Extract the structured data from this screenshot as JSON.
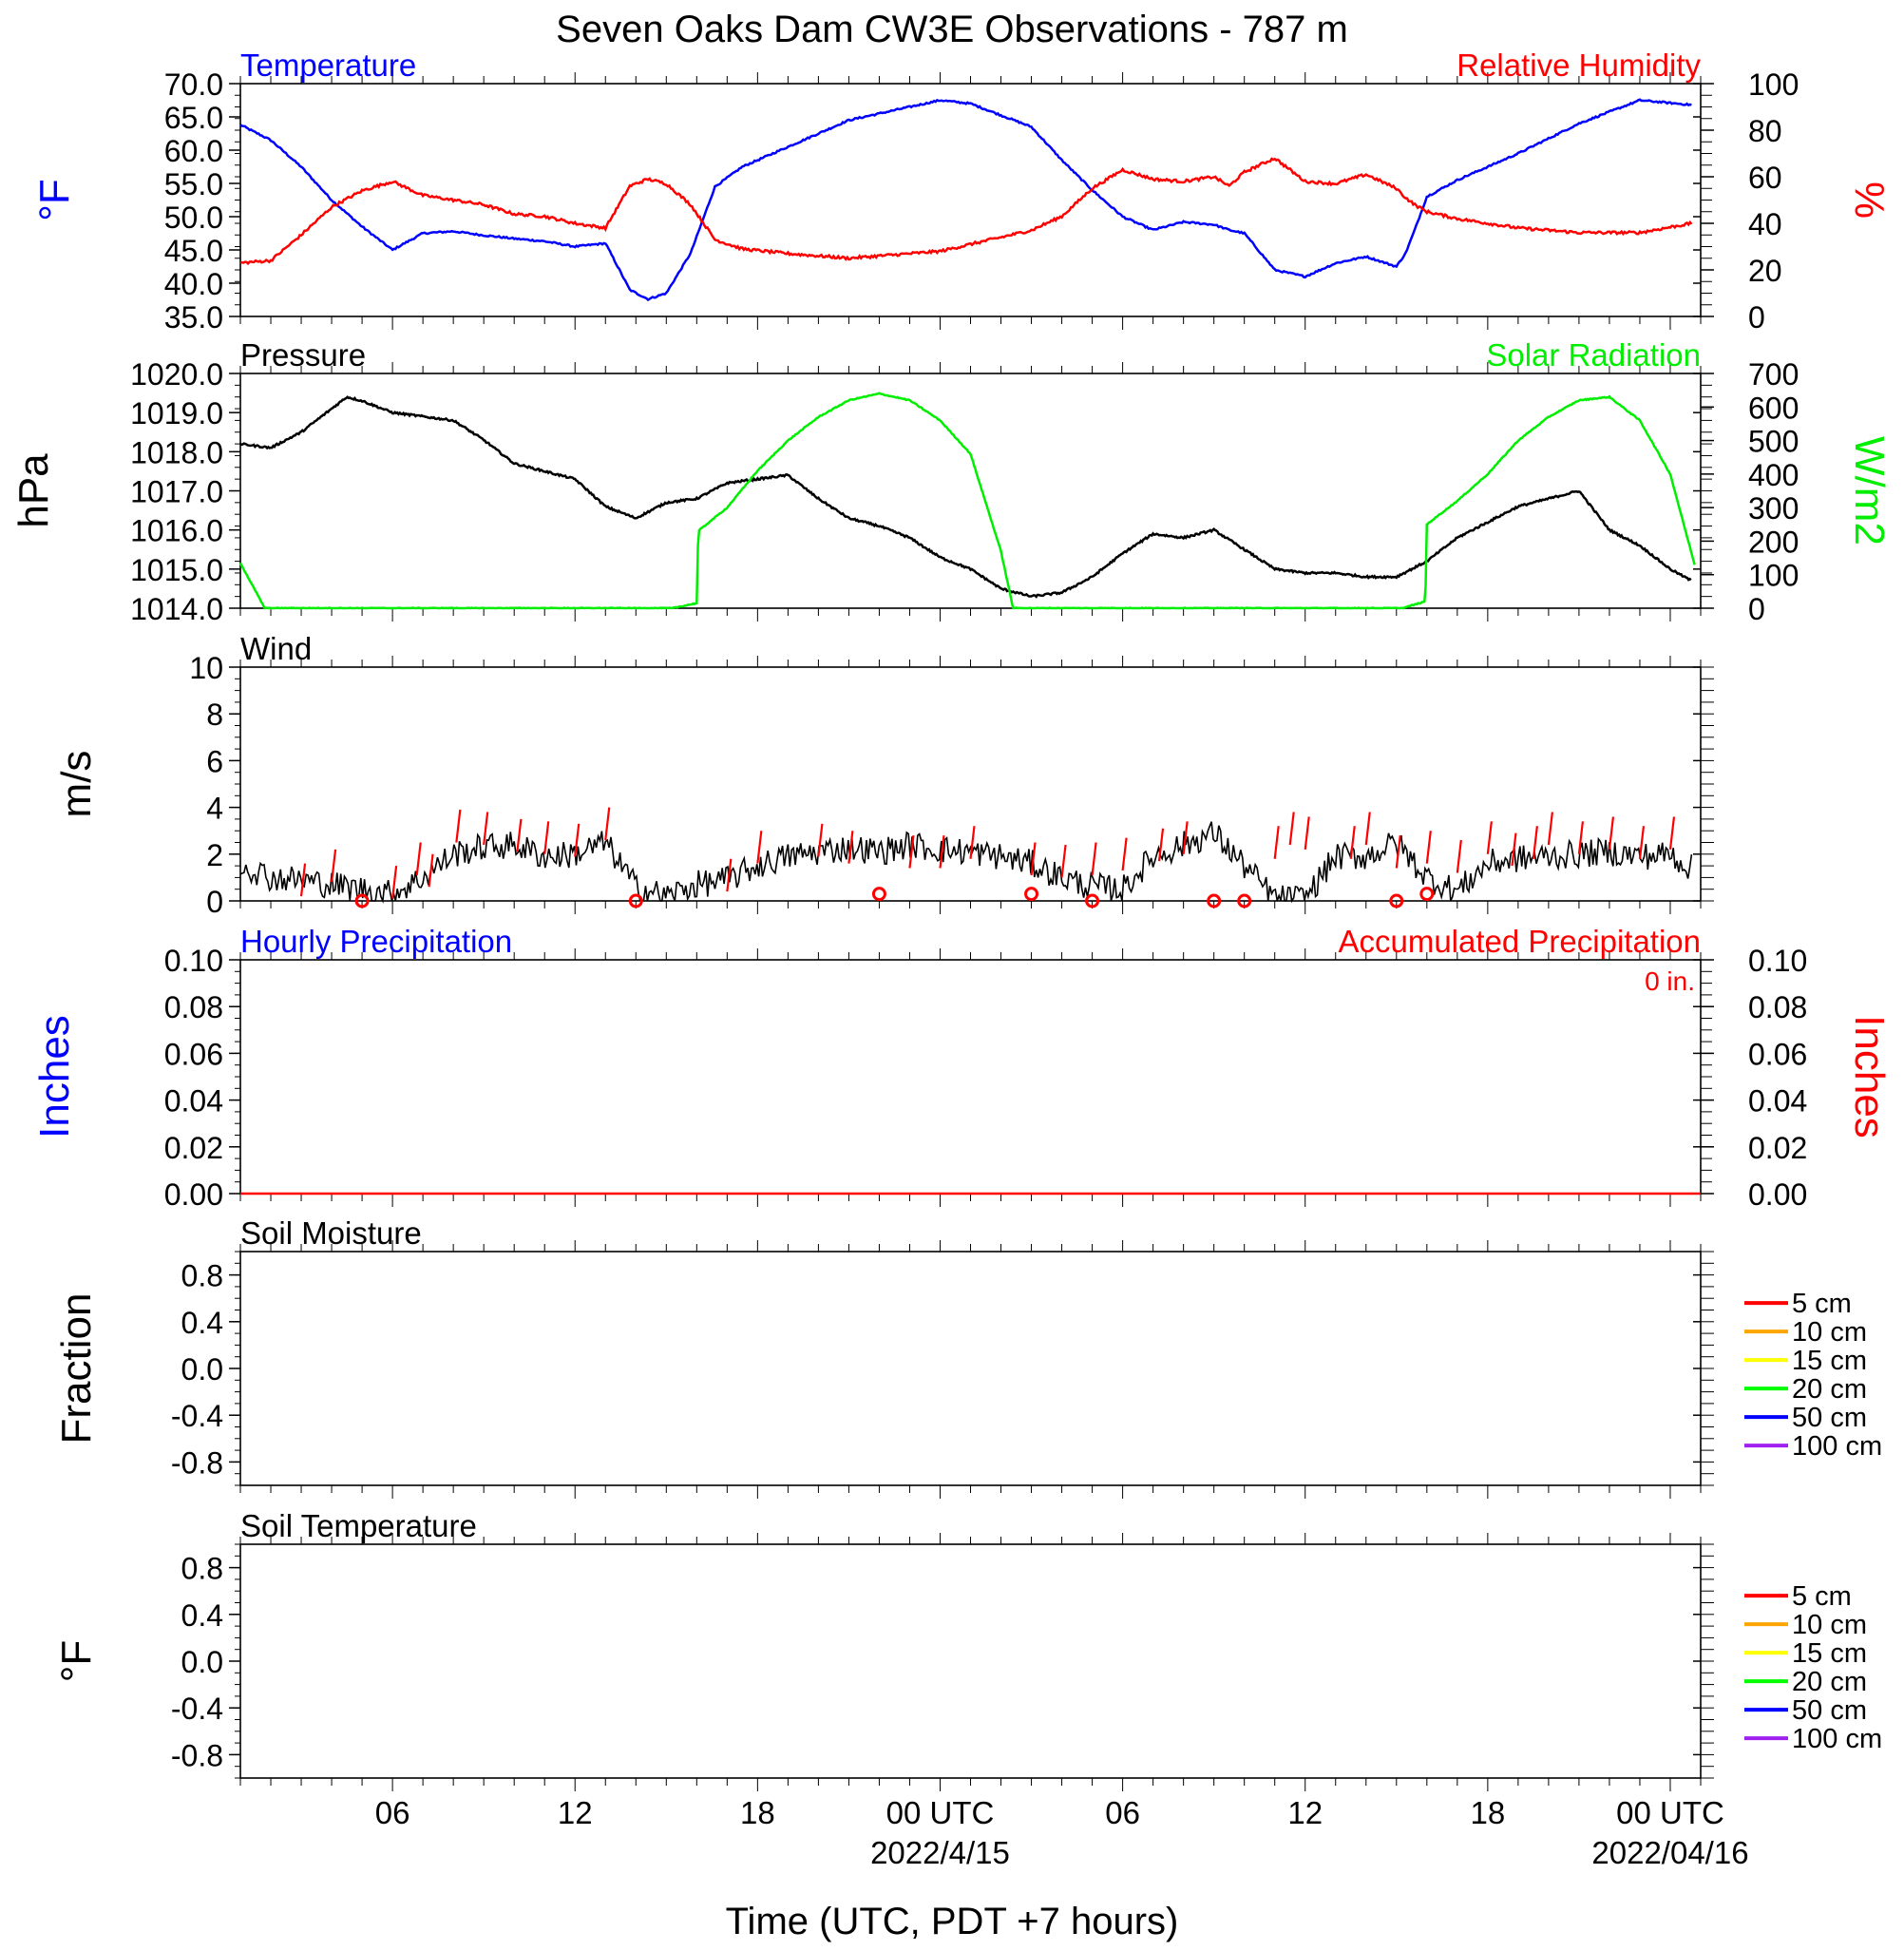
{
  "title": "Seven Oaks Dam CW3E Observations - 787 m",
  "xlabel": "Time (UTC, PDT +7 hours)",
  "time_axis": {
    "tick_labels": [
      "06",
      "12",
      "18",
      "00 UTC",
      "06",
      "12",
      "18",
      "00 UTC"
    ],
    "date_labels": [
      "2022/4/15",
      "2022/04/16"
    ]
  },
  "colors": {
    "temperature": "#0000ff",
    "humidity": "#ff0000",
    "pressure": "#000000",
    "solar": "#00ee00",
    "wind": "#000000",
    "gust": "#ff0000",
    "precip_hourly": "#0000ff",
    "precip_accum": "#ff0000"
  },
  "chart_data": [
    {
      "id": "temp-rh",
      "type": "line",
      "panel_labels": {
        "left": "Temperature",
        "right": "Relative Humidity"
      },
      "ylabel": "°F",
      "y2label": "%",
      "yticks": [
        "70.0",
        "65.0",
        "60.0",
        "55.0",
        "50.0",
        "45.0",
        "40.0",
        "35.0"
      ],
      "y2ticks": [
        "100",
        "80",
        "60",
        "40",
        "20",
        "0"
      ],
      "ylim": [
        35,
        70
      ],
      "y2lim": [
        0,
        100
      ],
      "x_hours": [
        0,
        1,
        2,
        3,
        4,
        5,
        6,
        7,
        8,
        9,
        10,
        11,
        12,
        12.8,
        13.4,
        14,
        14.8,
        15.6,
        16.5,
        18,
        20,
        22,
        23,
        24,
        26,
        27,
        28,
        29,
        30,
        31,
        32,
        32.5,
        33,
        34,
        35,
        36,
        37,
        38,
        38.3,
        38.6,
        39,
        40,
        42,
        44,
        46,
        47.7
      ],
      "series": [
        {
          "name": "Temperature",
          "color": "#0000ff",
          "axis": "left",
          "values": [
            63.8,
            61.5,
            57.5,
            52.5,
            48.5,
            45.0,
            47.5,
            47.8,
            47.2,
            46.7,
            46.3,
            45.5,
            46.0,
            39.0,
            37.6,
            38.5,
            44.5,
            54.5,
            57.5,
            60.5,
            64.5,
            66.5,
            67.5,
            67.0,
            63.5,
            58.5,
            54.0,
            50.0,
            48.0,
            49.2,
            48.8,
            48.0,
            47.5,
            42.0,
            41.0,
            43.0,
            44.0,
            42.5,
            44.5,
            48.0,
            53.0,
            55.5,
            59.5,
            64.0,
            67.5,
            66.8
          ]
        },
        {
          "name": "Relative Humidity",
          "color": "#ff0000",
          "axis": "right",
          "values": [
            23,
            24,
            35,
            47,
            54,
            58,
            52,
            50,
            48,
            44,
            43,
            40,
            38,
            56,
            59,
            57,
            48,
            33,
            29,
            27,
            25,
            27,
            28,
            31,
            37,
            43,
            55,
            63,
            59,
            58,
            60,
            56,
            62,
            68,
            58,
            57,
            61,
            55,
            51,
            48,
            45,
            42,
            38,
            36,
            36,
            40
          ]
        }
      ]
    },
    {
      "id": "pressure-solar",
      "type": "line",
      "panel_labels": {
        "left": "Pressure",
        "right": "Solar Radiation"
      },
      "ylabel": "hPa",
      "y2label": "W/m2",
      "yticks": [
        "1020.0",
        "1019.0",
        "1018.0",
        "1017.0",
        "1016.0",
        "1015.0",
        "1014.0"
      ],
      "y2ticks": [
        "700",
        "600",
        "500",
        "400",
        "300",
        "200",
        "100",
        "0"
      ],
      "ylim": [
        1014,
        1020
      ],
      "y2lim": [
        0,
        700
      ],
      "series": [
        {
          "name": "Pressure",
          "color": "#000000",
          "axis": "left",
          "x_hours": [
            0,
            1,
            2,
            3.5,
            4,
            5,
            6,
            7,
            8,
            9,
            10,
            11,
            12,
            13,
            14,
            15,
            16,
            17,
            18,
            19,
            20,
            21,
            22,
            23,
            24,
            25,
            26,
            27,
            28,
            29,
            30,
            31,
            32,
            33,
            34,
            35,
            36,
            37,
            38,
            39,
            40,
            41,
            42,
            43,
            44,
            45,
            46,
            47,
            47.7
          ],
          "values": [
            1018.2,
            1018.1,
            1018.5,
            1019.4,
            1019.3,
            1019.0,
            1018.9,
            1018.8,
            1018.3,
            1017.7,
            1017.5,
            1017.3,
            1016.6,
            1016.3,
            1016.7,
            1016.8,
            1017.2,
            1017.3,
            1017.4,
            1016.8,
            1016.3,
            1016.1,
            1015.8,
            1015.3,
            1015.0,
            1014.5,
            1014.3,
            1014.4,
            1014.8,
            1015.4,
            1015.9,
            1015.8,
            1016.0,
            1015.5,
            1015.0,
            1014.9,
            1014.9,
            1014.8,
            1014.8,
            1015.2,
            1015.8,
            1016.2,
            1016.6,
            1016.8,
            1017.0,
            1016.0,
            1015.6,
            1015.0,
            1014.7
          ]
        },
        {
          "name": "Solar Radiation",
          "color": "#00ee00",
          "axis": "right",
          "x_hours": [
            0,
            0.8,
            12,
            14.2,
            15,
            15.05,
            16,
            17,
            18,
            19,
            20,
            21,
            22,
            23,
            24,
            25,
            25.4,
            36,
            38.2,
            38.95,
            39,
            40,
            41,
            42,
            43,
            44,
            45,
            46,
            47,
            47.8
          ],
          "values": [
            135,
            0,
            0,
            0,
            15,
            230,
            300,
            410,
            500,
            570,
            620,
            640,
            620,
            560,
            460,
            170,
            0,
            0,
            0,
            20,
            250,
            320,
            400,
            500,
            570,
            620,
            630,
            560,
            400,
            130
          ]
        }
      ]
    },
    {
      "id": "wind",
      "type": "line",
      "panel_labels": {
        "left": "Wind"
      },
      "ylabel": "m/s",
      "yticks": [
        "10",
        "8",
        "6",
        "4",
        "2",
        "0"
      ],
      "ylim": [
        0,
        10
      ],
      "x_hours": [
        0,
        1,
        2,
        3,
        4,
        5,
        6,
        7,
        8,
        9,
        10,
        11,
        12,
        13,
        14,
        15,
        16,
        17,
        18,
        19,
        20,
        21,
        22,
        23,
        24,
        25,
        26,
        27,
        28,
        29,
        30,
        31,
        32,
        33,
        34,
        35,
        36,
        37,
        38,
        39,
        40,
        41,
        42,
        43,
        44,
        45,
        46,
        47,
        47.7
      ],
      "series": [
        {
          "name": "Wind",
          "color": "#000000",
          "values": [
            1.6,
            1.0,
            0.9,
            0.7,
            0.5,
            0.3,
            1.0,
            2.0,
            2.3,
            2.4,
            1.9,
            2.0,
            2.5,
            0.6,
            0.2,
            0.7,
            0.9,
            1.5,
            1.9,
            2.1,
            2.3,
            2.1,
            2.4,
            2.2,
            2.1,
            1.9,
            1.6,
            1.0,
            0.6,
            0.5,
            1.9,
            2.4,
            2.9,
            1.5,
            0.1,
            0.1,
            1.9,
            1.9,
            2.5,
            1.0,
            0.4,
            1.6,
            1.8,
            1.9,
            2.0,
            2.1,
            1.9,
            2.0,
            1.4
          ]
        },
        {
          "name": "Gust",
          "color": "#ff0000",
          "x_hours": [
            2,
            3,
            5,
            5.8,
            6.2,
            7.1,
            8,
            9.1,
            10,
            11,
            12,
            16,
            17,
            19,
            20,
            22,
            23,
            24,
            26,
            27,
            28,
            29,
            30.2,
            31,
            34,
            34.5,
            35,
            36.5,
            37,
            38,
            39,
            40,
            41,
            41.8,
            42.5,
            43,
            44,
            45,
            46,
            47
          ],
          "values": [
            1.6,
            2.2,
            1.5,
            2.5,
            2.0,
            3.9,
            3.8,
            3.5,
            3.4,
            3.3,
            4.0,
            1.8,
            3.0,
            3.3,
            3.0,
            2.8,
            2.8,
            3.2,
            2.5,
            2.4,
            2.5,
            2.7,
            3.1,
            3.4,
            3.2,
            3.8,
            3.6,
            3.2,
            3.8,
            2.8,
            3.0,
            2.6,
            3.4,
            2.9,
            3.2,
            3.8,
            3.4,
            3.6,
            3.2,
            3.6
          ]
        },
        {
          "name": "Calm",
          "color": "#ff0000",
          "x_hours": [
            4,
            13,
            21,
            26,
            28,
            32,
            33,
            38,
            39
          ],
          "values": [
            0,
            0,
            0.3,
            0.3,
            0,
            0,
            0,
            0,
            0.3
          ]
        }
      ]
    },
    {
      "id": "precip",
      "type": "line",
      "panel_labels": {
        "left": "Hourly Precipitation",
        "right": "Accumulated Precipitation"
      },
      "annotation": "0 in.",
      "ylabel": "Inches",
      "y2label": "Inches",
      "yticks": [
        "0.10",
        "0.08",
        "0.06",
        "0.04",
        "0.02",
        "0.00"
      ],
      "y2ticks": [
        "0.10",
        "0.08",
        "0.06",
        "0.04",
        "0.02",
        "0.00"
      ],
      "ylim": [
        0,
        0.1
      ],
      "y2lim": [
        0,
        0.1
      ],
      "series": [
        {
          "name": "Accumulated Precipitation",
          "color": "#ff0000",
          "x_hours": [
            0,
            48
          ],
          "values": [
            0,
            0
          ]
        }
      ]
    },
    {
      "id": "soil-moisture",
      "type": "line",
      "panel_labels": {
        "left": "Soil Moisture"
      },
      "ylabel": "Fraction",
      "yticks": [
        "0.8",
        "0.4",
        "0.0",
        "-0.4",
        "-0.8"
      ],
      "ylim": [
        -1,
        1
      ],
      "legend": [
        {
          "label": "5 cm",
          "color": "#ff0000"
        },
        {
          "label": "10 cm",
          "color": "#ffa500"
        },
        {
          "label": "15 cm",
          "color": "#ffff00"
        },
        {
          "label": "20 cm",
          "color": "#00ff00"
        },
        {
          "label": "50 cm",
          "color": "#0000ff"
        },
        {
          "label": "100 cm",
          "color": "#a020f0"
        }
      ],
      "series": []
    },
    {
      "id": "soil-temp",
      "type": "line",
      "panel_labels": {
        "left": "Soil Temperature"
      },
      "ylabel": "°F",
      "yticks": [
        "0.8",
        "0.4",
        "0.0",
        "-0.4",
        "-0.8"
      ],
      "ylim": [
        -1,
        1
      ],
      "legend": [
        {
          "label": "5 cm",
          "color": "#ff0000"
        },
        {
          "label": "10 cm",
          "color": "#ffa500"
        },
        {
          "label": "15 cm",
          "color": "#ffff00"
        },
        {
          "label": "20 cm",
          "color": "#00ff00"
        },
        {
          "label": "50 cm",
          "color": "#0000ff"
        },
        {
          "label": "100 cm",
          "color": "#a020f0"
        }
      ],
      "series": []
    }
  ]
}
